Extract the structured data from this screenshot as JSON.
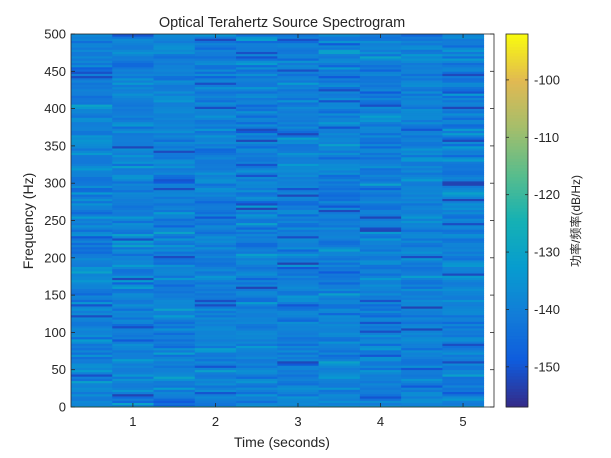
{
  "chart_data": {
    "type": "heatmap",
    "title": "Optical Terahertz Source Spectrogram",
    "xlabel": "Time (seconds)",
    "ylabel": "Frequency (Hz)",
    "colorbar_label": "功率/频率(dB/Hz)",
    "xlim": [
      0.25,
      5.375
    ],
    "ylim": [
      0,
      500
    ],
    "x_ticks": [
      1,
      2,
      3,
      4,
      5
    ],
    "y_ticks": [
      0,
      50,
      100,
      150,
      200,
      250,
      300,
      350,
      400,
      450,
      500
    ],
    "clim": [
      -157,
      -92
    ],
    "colorbar_ticks": [
      -150,
      -140,
      -130,
      -120,
      -110,
      -100
    ],
    "colormap": "parula",
    "time_bin_centers": [
      0.5,
      1.0,
      1.5,
      2.0,
      2.5,
      3.0,
      3.5,
      4.0,
      4.5,
      5.0
    ],
    "frequency_range": [
      0,
      500
    ],
    "typical_level_db_per_hz": -140,
    "level_spread_db_per_hz": [
      -153,
      -130
    ],
    "zero_frequency_level_db_per_hz": -128,
    "grid": false
  }
}
